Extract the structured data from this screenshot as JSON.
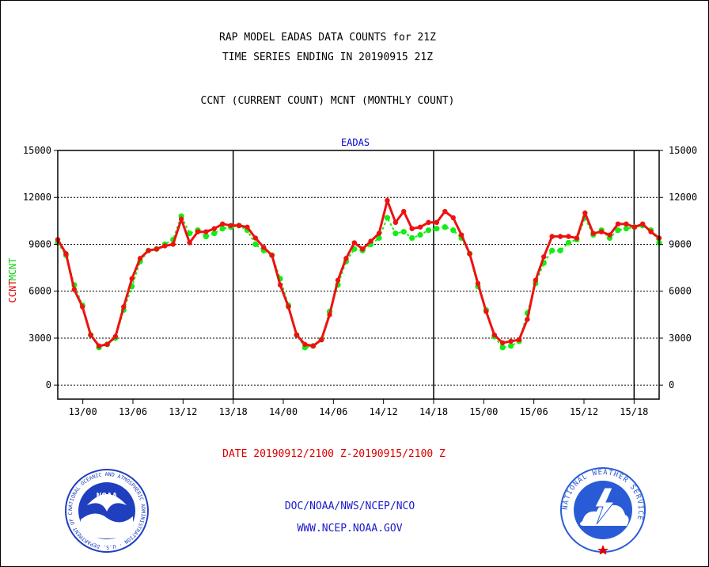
{
  "header": {
    "title_line1": "RAP MODEL EADAS DATA COUNTS for 21Z",
    "title_line2": "TIME SERIES ENDING IN 20190915 21Z",
    "subtitle": "CCNT (CURRENT COUNT) MCNT (MONTHLY COUNT)"
  },
  "footer": {
    "date_range": "DATE 20190912/2100 Z-20190915/2100 Z",
    "org_line": "DOC/NOAA/NWS/NCEP/NCO",
    "url": "WWW.NCEP.NOAA.GOV"
  },
  "logos": {
    "left_text": "NOAA",
    "left_ring_text": "NATIONAL OCEANIC AND ATMOSPHERIC ADMINISTRATION · U.S. DEPARTMENT OF COMMERCE ·",
    "right_ring_text": "NATIONAL WEATHER SERVICE"
  },
  "colors": {
    "ccnt": "#ee1111",
    "mcnt": "#11ee11",
    "title_blue": "#0000cc",
    "date_red": "#dd0000",
    "noaa_blue": "#1f3fbf",
    "nws_blue": "#2a5bd7"
  },
  "chart_data": {
    "type": "line",
    "title": "EADAS",
    "ylabel_ccnt": "CCNT",
    "ylabel_mcnt": "MCNT",
    "ylim": [
      -900,
      15000
    ],
    "yticks": [
      0,
      3000,
      6000,
      9000,
      12000,
      15000
    ],
    "xlim_hours": [
      0,
      72
    ],
    "xticks": [
      {
        "h": 3,
        "label": "13/00"
      },
      {
        "h": 9,
        "label": "13/06"
      },
      {
        "h": 15,
        "label": "13/12"
      },
      {
        "h": 21,
        "label": "13/18"
      },
      {
        "h": 27,
        "label": "14/00"
      },
      {
        "h": 33,
        "label": "14/06"
      },
      {
        "h": 39,
        "label": "14/12"
      },
      {
        "h": 45,
        "label": "14/18"
      },
      {
        "h": 51,
        "label": "15/00"
      },
      {
        "h": 57,
        "label": "15/06"
      },
      {
        "h": 63,
        "label": "15/12"
      },
      {
        "h": 69,
        "label": "15/18"
      }
    ],
    "day_lines_hours": [
      21,
      45,
      69
    ],
    "grid": true,
    "series": [
      {
        "name": "CCNT",
        "color": "#ee1111",
        "values": [
          9300,
          8400,
          6100,
          5000,
          3200,
          2500,
          2600,
          3100,
          5000,
          6800,
          8100,
          8600,
          8700,
          8900,
          9000,
          10600,
          9100,
          9800,
          9800,
          10000,
          10300,
          10200,
          10200,
          10100,
          9400,
          8800,
          8300,
          6400,
          5000,
          3200,
          2600,
          2500,
          2900,
          4500,
          6700,
          8100,
          9100,
          8700,
          9200,
          9700,
          11800,
          10400,
          11100,
          10000,
          10100,
          10400,
          10400,
          11100,
          10700,
          9600,
          8400,
          6500,
          4700,
          3200,
          2700,
          2800,
          2900,
          4200,
          6700,
          8200,
          9500,
          9500,
          9500,
          9400,
          11000,
          9700,
          9800,
          9600,
          10300,
          10300,
          10100,
          10300,
          9800,
          9400
        ]
      },
      {
        "name": "MCNT",
        "color": "#11ee11",
        "values": [
          9100,
          8300,
          6400,
          5100,
          3200,
          2400,
          2600,
          3000,
          4800,
          6300,
          7900,
          8600,
          8700,
          9000,
          9300,
          10800,
          9700,
          9900,
          9500,
          9700,
          10000,
          10100,
          10200,
          9900,
          9000,
          8600,
          8300,
          6800,
          5100,
          3200,
          2400,
          2500,
          2900,
          4700,
          6400,
          7900,
          8700,
          8600,
          9000,
          9400,
          10700,
          9700,
          9800,
          9400,
          9600,
          9900,
          10000,
          10100,
          9900,
          9400,
          8400,
          6300,
          4800,
          3100,
          2400,
          2500,
          2800,
          4600,
          6500,
          7800,
          8600,
          8600,
          9100,
          9300,
          10700,
          9600,
          9900,
          9400,
          9900,
          10000,
          10100,
          10200,
          9900,
          9100
        ]
      }
    ],
    "y_tick_labels": [
      "0",
      "3000",
      "6000",
      "9000",
      "12000",
      "15000"
    ]
  }
}
